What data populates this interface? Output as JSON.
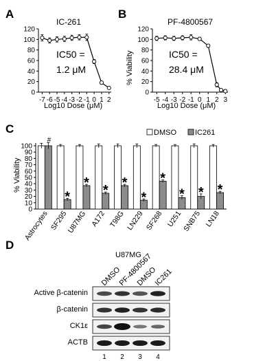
{
  "panels": {
    "a": {
      "letter": "A",
      "title": "IC-261",
      "ic50_line1": "IC50 =",
      "ic50_line2": "1.2 μM",
      "xlabel": "Log10 Dose (μM)",
      "ylabel": ""
    },
    "b": {
      "letter": "B",
      "title": "PF-4800567",
      "ic50_line1": "IC50 =",
      "ic50_line2": "28.4 μM",
      "xlabel": "Log10 Dose (μM)",
      "ylabel": "% Viability"
    },
    "c": {
      "letter": "C",
      "ylabel": "% Viability",
      "legend_dmso": "DMSO",
      "legend_ic261": "IC261",
      "star": "*",
      "hash": "#"
    },
    "d": {
      "letter": "D",
      "cell_line": "U87MG",
      "lane_labels": [
        "DMSO",
        "PF-4800567",
        "DMSO",
        "IC261"
      ],
      "row_labels": [
        "Active β-catenin",
        "β-catenin",
        "CK1ε",
        "ACTB"
      ],
      "lane_numbers": [
        "1",
        "2",
        "3",
        "4"
      ]
    }
  },
  "colors": {
    "dmso": "#ffffff",
    "ic261": "#8c8c8c",
    "axis": "#000000"
  },
  "chart_data": [
    {
      "type": "line",
      "title": "IC-261",
      "xlabel": "Log10 Dose (μM)",
      "ylabel": "",
      "x_ticks": [
        "-7",
        "-6",
        "-5",
        "-4",
        "-3",
        "-2",
        "-1",
        "0",
        "1",
        "2"
      ],
      "y_ticks": [
        "0",
        "20",
        "40",
        "60",
        "80",
        "100",
        "120"
      ],
      "xlim": [
        -7.5,
        2.3
      ],
      "ylim": [
        0,
        120
      ],
      "series": [
        {
          "x": [
            -7,
            -6,
            -5,
            -4,
            -3,
            -2,
            -1,
            0,
            1,
            2
          ],
          "y": [
            103,
            98,
            100,
            101,
            103,
            104,
            104,
            58,
            18,
            8
          ],
          "err": [
            6,
            5,
            5,
            5,
            5,
            5,
            6,
            4,
            3,
            2
          ]
        }
      ]
    },
    {
      "type": "line",
      "title": "PF-4800567",
      "xlabel": "Log10 Dose (μM)",
      "ylabel": "% Viability",
      "x_ticks": [
        "-5",
        "-4",
        "-3",
        "-2",
        "-1",
        "0",
        "1",
        "2",
        "3"
      ],
      "y_ticks": [
        "0",
        "20",
        "40",
        "60",
        "80",
        "100",
        "120"
      ],
      "xlim": [
        -5.5,
        3.3
      ],
      "ylim": [
        0,
        120
      ],
      "series": [
        {
          "x": [
            -5,
            -4,
            -3,
            -2,
            -1,
            0,
            1,
            2,
            2.5,
            3
          ],
          "y": [
            102,
            103,
            102,
            103,
            104,
            101,
            88,
            14,
            4,
            2
          ],
          "err": [
            4,
            4,
            4,
            4,
            5,
            3,
            3,
            4,
            2,
            1
          ]
        }
      ]
    },
    {
      "type": "bar",
      "ylabel": "% Viability",
      "categories": [
        "Astrocytes",
        "SF295",
        "U87MG",
        "A172",
        "T98G",
        "LN229",
        "SF268",
        "U251",
        "SNB75",
        "LN18"
      ],
      "y_ticks": [
        "0",
        "10",
        "20",
        "30",
        "40",
        "50",
        "60",
        "70",
        "80",
        "90",
        "100"
      ],
      "ylim": [
        0,
        100
      ],
      "legend": "top-right",
      "series": [
        {
          "name": "DMSO",
          "values": [
            100,
            100,
            100,
            100,
            100,
            100,
            100,
            100,
            100,
            100
          ],
          "err": [
            4,
            2,
            2,
            3,
            3,
            3,
            2,
            2,
            3,
            2
          ]
        },
        {
          "name": "IC261",
          "values": [
            100,
            15,
            37,
            25,
            37,
            14,
            44,
            18,
            20,
            26
          ],
          "err": [
            5,
            2,
            2,
            2,
            2,
            2,
            2,
            3,
            4,
            2
          ]
        }
      ],
      "annotations": [
        "#",
        "*",
        "*",
        "*",
        "*",
        "*",
        "*",
        "*",
        "*",
        "*"
      ]
    }
  ]
}
